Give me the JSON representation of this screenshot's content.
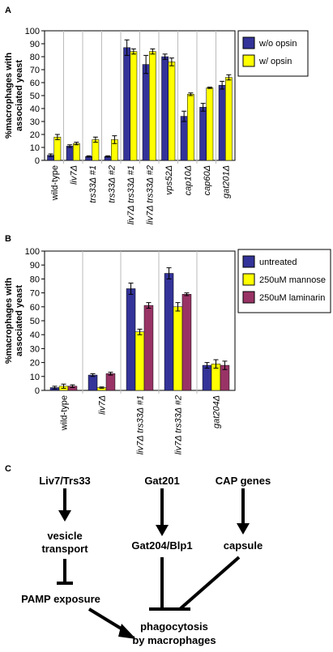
{
  "panels": [
    "A",
    "B",
    "C"
  ],
  "chart_data": [
    {
      "type": "bar",
      "ylabel": [
        "%macrophages with",
        "associated yeast"
      ],
      "categories": [
        "wild-type",
        "liv7Δ",
        "trs33Δ #1",
        "trs33Δ #2",
        "liv7Δ trs33Δ #1",
        "liv7Δ trs33Δ #2",
        "vps52Δ",
        "cap10Δ",
        "cap60Δ",
        "gat201Δ"
      ],
      "series": [
        {
          "name": "w/o opsin",
          "color": "#333399",
          "values": [
            4,
            11,
            3,
            3,
            87,
            74,
            80,
            34,
            41,
            58
          ],
          "errors": [
            1,
            1,
            0.5,
            0.5,
            6,
            7,
            2,
            4,
            3,
            3
          ]
        },
        {
          "name": "w/ opsin",
          "color": "#ffff00",
          "values": [
            18,
            13,
            16,
            16,
            84,
            84,
            76,
            51,
            56,
            64
          ],
          "errors": [
            2,
            1,
            2,
            3,
            2,
            2,
            3,
            1,
            0.5,
            2
          ]
        }
      ],
      "ylim": [
        0,
        100
      ],
      "yticks": [
        0,
        10,
        20,
        30,
        40,
        50,
        60,
        70,
        80,
        90,
        100
      ]
    },
    {
      "type": "bar",
      "ylabel": [
        "%macrophages with",
        "associated yeast"
      ],
      "categories": [
        "wild-type",
        "liv7Δ",
        "liv7Δ trs33Δ #1",
        "liv7Δ trs33Δ #2",
        "gat204Δ"
      ],
      "series": [
        {
          "name": "untreated",
          "color": "#333399",
          "values": [
            2,
            11,
            73,
            84,
            18
          ],
          "errors": [
            1,
            1,
            4,
            4,
            2
          ]
        },
        {
          "name": "250uM mannose",
          "color": "#ffff00",
          "values": [
            3,
            2,
            42,
            60,
            19
          ],
          "errors": [
            1.5,
            0.5,
            2,
            3,
            3
          ]
        },
        {
          "name": "250uM laminarin",
          "color": "#993366",
          "values": [
            3,
            12,
            61,
            69,
            18
          ],
          "errors": [
            1,
            1,
            2,
            1,
            3
          ]
        }
      ],
      "ylim": [
        0,
        100
      ],
      "yticks": [
        0,
        10,
        20,
        30,
        40,
        50,
        60,
        70,
        80,
        90,
        100
      ]
    }
  ],
  "diagram": {
    "nodes": [
      "Liv7/Trs33",
      "Gat201",
      "CAP genes",
      "vesicle",
      "transport",
      "Gat204/Blp1",
      "capsule",
      "PAMP exposure",
      "phagocytosis",
      "by macrophages"
    ]
  }
}
